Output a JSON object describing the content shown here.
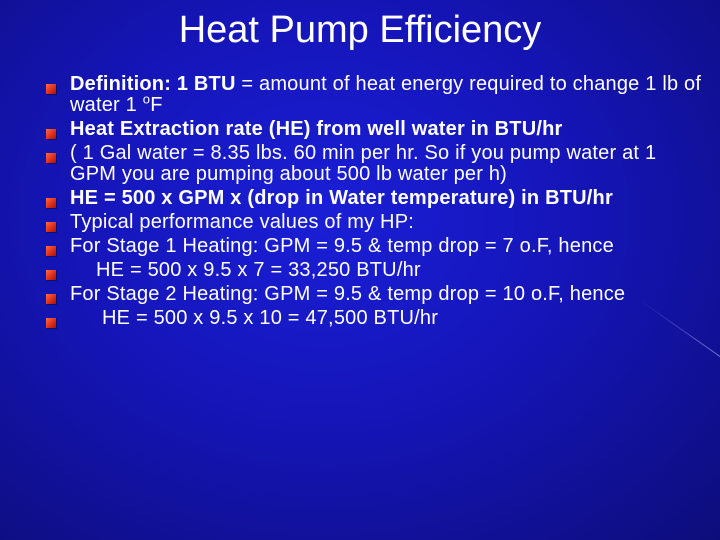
{
  "slide": {
    "title": "Heat Pump Efficiency",
    "bullet_color": "#e0301e",
    "background_color": "#1515b8"
  },
  "bullets": {
    "b1_label": "Definition:  1 BTU",
    "b1_text": " = amount of heat energy required to change 1 lb of water 1 ",
    "b1_degree": "o",
    "b1_unit": "F",
    "b2": "Heat Extraction rate (HE) from well water in BTU/hr",
    "b3": "( 1 Gal water = 8.35 lbs. 60 min per hr. So if you pump water at 1 GPM you are pumping about 500 lb water per h)",
    "b4": "HE = 500 x GPM x (drop in Water temperature) in BTU/hr",
    "b5": "Typical performance values of my HP:",
    "b6": "For Stage 1 Heating:  GPM = 9.5 & temp drop = 7 o.F, hence",
    "b7": "HE = 500 x 9.5 x 7 = 33,250 BTU/hr",
    "b8": "For Stage 2 Heating:  GPM = 9.5 & temp drop =  10 o.F, hence",
    "b9": "HE = 500 x 9.5 x 10 = 47,500 BTU/hr"
  }
}
